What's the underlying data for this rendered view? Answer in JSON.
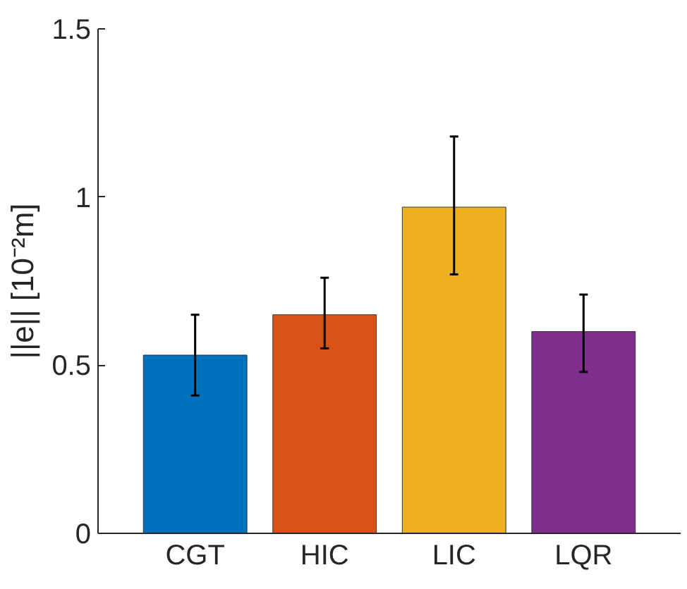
{
  "chart_data": {
    "type": "bar",
    "ylabel": "||e|| [10⁻²m]",
    "categories": [
      "CGT",
      "HIC",
      "LIC",
      "LQR"
    ],
    "values": [
      0.53,
      0.65,
      0.97,
      0.6
    ],
    "colors": [
      "#0072bd",
      "#d95319",
      "#edb120",
      "#7e2f8e"
    ],
    "errors": [
      [
        0.41,
        0.65
      ],
      [
        0.55,
        0.76
      ],
      [
        0.77,
        1.18
      ],
      [
        0.48,
        0.71
      ]
    ],
    "ylim": [
      0,
      1.5
    ],
    "yticks": [
      0,
      0.5,
      1,
      1.5
    ],
    "grid": false
  }
}
